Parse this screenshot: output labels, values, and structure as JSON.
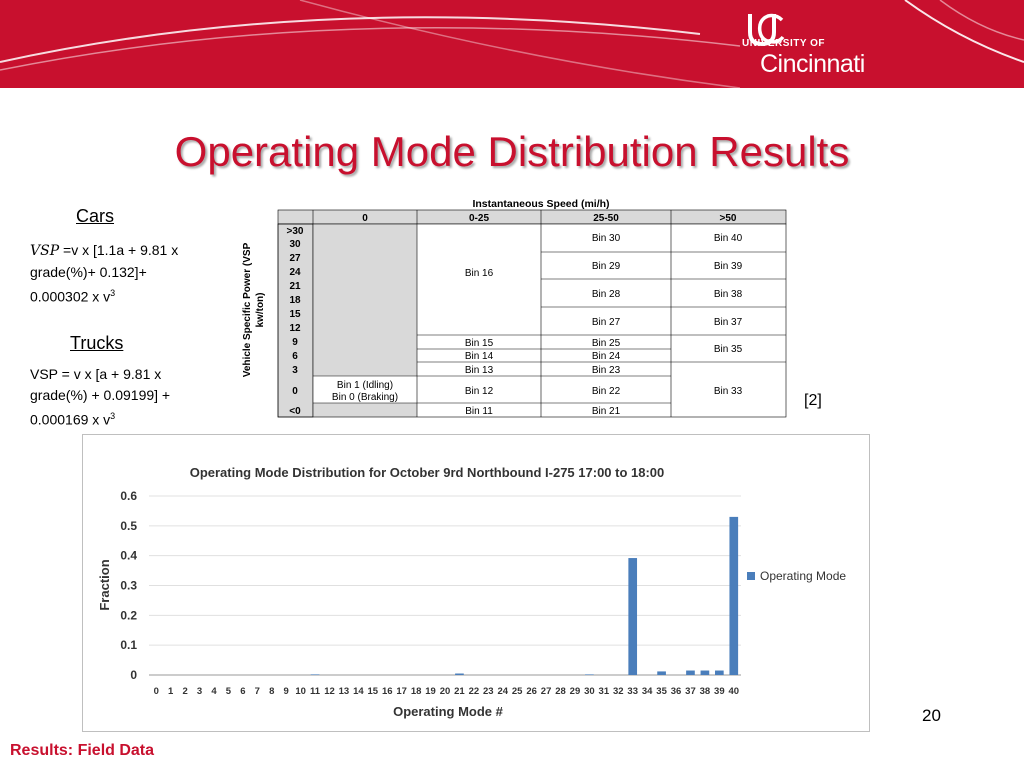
{
  "colors": {
    "brand_red": "#c8102e",
    "bar_blue": "#4a7ebb",
    "table_gray": "#d9d9d9"
  },
  "header": {
    "university_of": "UNIVERSITY OF",
    "cincinnati": "Cincinnati",
    "logo_icon": "uc-monogram"
  },
  "slide": {
    "title": "Operating Mode Distribution Results",
    "cars_label": "Cars",
    "cars_formula": {
      "sym": "VSP",
      "line1": " =v x [1.1a + 9.81 x",
      "line2": "grade(%)+ 0.132]+",
      "line3": "0.000302 x v",
      "sup": "3"
    },
    "trucks_label": "Trucks",
    "trucks_formula": {
      "line1": "VSP = v x [a + 9.81 x",
      "line2": "grade(%) + 0.09199] +",
      "line3": "0.000169 x v",
      "sup": "3"
    },
    "reference": "[2]",
    "page_number": "20",
    "footer": "Results: Field Data"
  },
  "vsp_table": {
    "header_title": "Instantaneous Speed (mi/h)",
    "row_axis_label_line1": "Vehicle Specific Power (VSP",
    "row_axis_label_line2": "kw/ton)",
    "speed_cols": [
      "0",
      "0-25",
      "25-50",
      ">50"
    ],
    "vsp_rows": [
      ">30",
      "30",
      "27",
      "24",
      "21",
      "18",
      "15",
      "12",
      "9",
      "6",
      "3",
      "0",
      "<0"
    ],
    "cells": {
      "bin16": "Bin 16",
      "bin30": "Bin 30",
      "bin29": "Bin 29",
      "bin28": "Bin 28",
      "bin27": "Bin 27",
      "bin40": "Bin 40",
      "bin39": "Bin 39",
      "bin38": "Bin 38",
      "bin37": "Bin 37",
      "bin15": "Bin 15",
      "bin14": "Bin 14",
      "bin13": "Bin 13",
      "bin12": "Bin 12",
      "bin11": "Bin 11",
      "bin25": "Bin 25",
      "bin24": "Bin 24",
      "bin23": "Bin 23",
      "bin22": "Bin 22",
      "bin21": "Bin 21",
      "bin35": "Bin 35",
      "bin33": "Bin 33",
      "bin1": "Bin 1 (Idling)",
      "bin0": "Bin 0 (Braking)"
    }
  },
  "chart_data": {
    "type": "bar",
    "title": "Operating Mode Distribution for October 9rd Northbound I-275 17:00 to 18:00",
    "xlabel": "Operating Mode #",
    "ylabel": "Fraction",
    "ylim": [
      0,
      0.6
    ],
    "yticks": [
      "0",
      "0.1",
      "0.2",
      "0.3",
      "0.4",
      "0.5",
      "0.6"
    ],
    "grid": true,
    "legend_position": "right",
    "categories": [
      "0",
      "1",
      "2",
      "3",
      "4",
      "5",
      "6",
      "7",
      "8",
      "9",
      "10",
      "11",
      "12",
      "13",
      "14",
      "15",
      "16",
      "17",
      "18",
      "19",
      "20",
      "21",
      "22",
      "23",
      "24",
      "25",
      "26",
      "27",
      "28",
      "29",
      "30",
      "31",
      "32",
      "33",
      "34",
      "35",
      "36",
      "37",
      "38",
      "39",
      "40"
    ],
    "series": [
      {
        "name": "Operating Mode",
        "values": [
          0,
          0,
          0,
          0,
          0,
          0,
          0,
          0,
          0,
          0,
          0,
          0.002,
          0,
          0,
          0,
          0,
          0,
          0,
          0,
          0,
          0,
          0.005,
          0,
          0,
          0,
          0,
          0,
          0,
          0,
          0,
          0.002,
          0,
          0,
          0.392,
          0,
          0.012,
          0,
          0.015,
          0.015,
          0.015,
          0.53
        ]
      }
    ]
  }
}
